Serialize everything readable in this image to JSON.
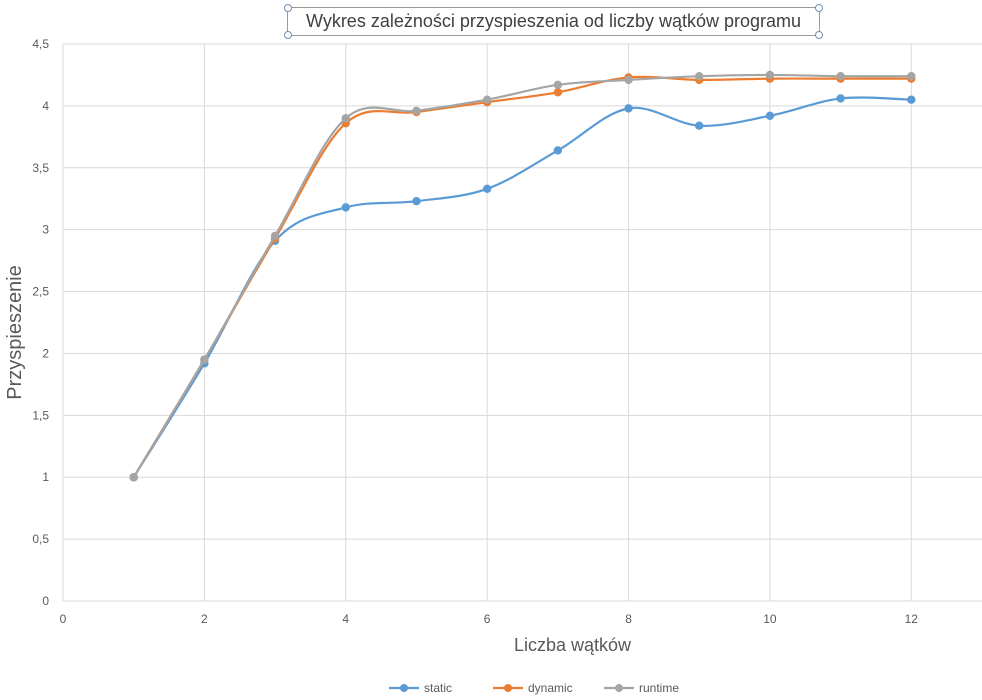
{
  "chart_data": {
    "type": "line",
    "title": "Wykres zależności przyspieszenia od liczby wątków programu",
    "xlabel": "Liczba wątków",
    "ylabel": "Przyspieszenie",
    "xlim": [
      0,
      13
    ],
    "ylim": [
      0,
      4.5
    ],
    "xticks": [
      "0",
      "2",
      "4",
      "6",
      "8",
      "10",
      "12"
    ],
    "yticks": [
      "0",
      "0,5",
      "1",
      "1,5",
      "2",
      "2,5",
      "3",
      "3,5",
      "4",
      "4,5"
    ],
    "grid": true,
    "legend_position": "bottom",
    "x": [
      1,
      2,
      3,
      4,
      5,
      6,
      7,
      8,
      9,
      10,
      11,
      12
    ],
    "series": [
      {
        "name": "static",
        "color": "#5b9bd5",
        "values": [
          1,
          1.92,
          2.91,
          3.18,
          3.23,
          3.33,
          3.64,
          3.98,
          3.84,
          3.92,
          4.06,
          4.05
        ]
      },
      {
        "name": "dynamic",
        "color": "#ed7d31",
        "values": [
          1,
          1.95,
          2.93,
          3.86,
          3.95,
          4.03,
          4.11,
          4.23,
          4.21,
          4.22,
          4.22,
          4.22
        ]
      },
      {
        "name": "runtime",
        "color": "#a5a5a5",
        "values": [
          1,
          1.95,
          2.95,
          3.9,
          3.96,
          4.05,
          4.17,
          4.21,
          4.24,
          4.25,
          4.24,
          4.24
        ]
      }
    ]
  }
}
